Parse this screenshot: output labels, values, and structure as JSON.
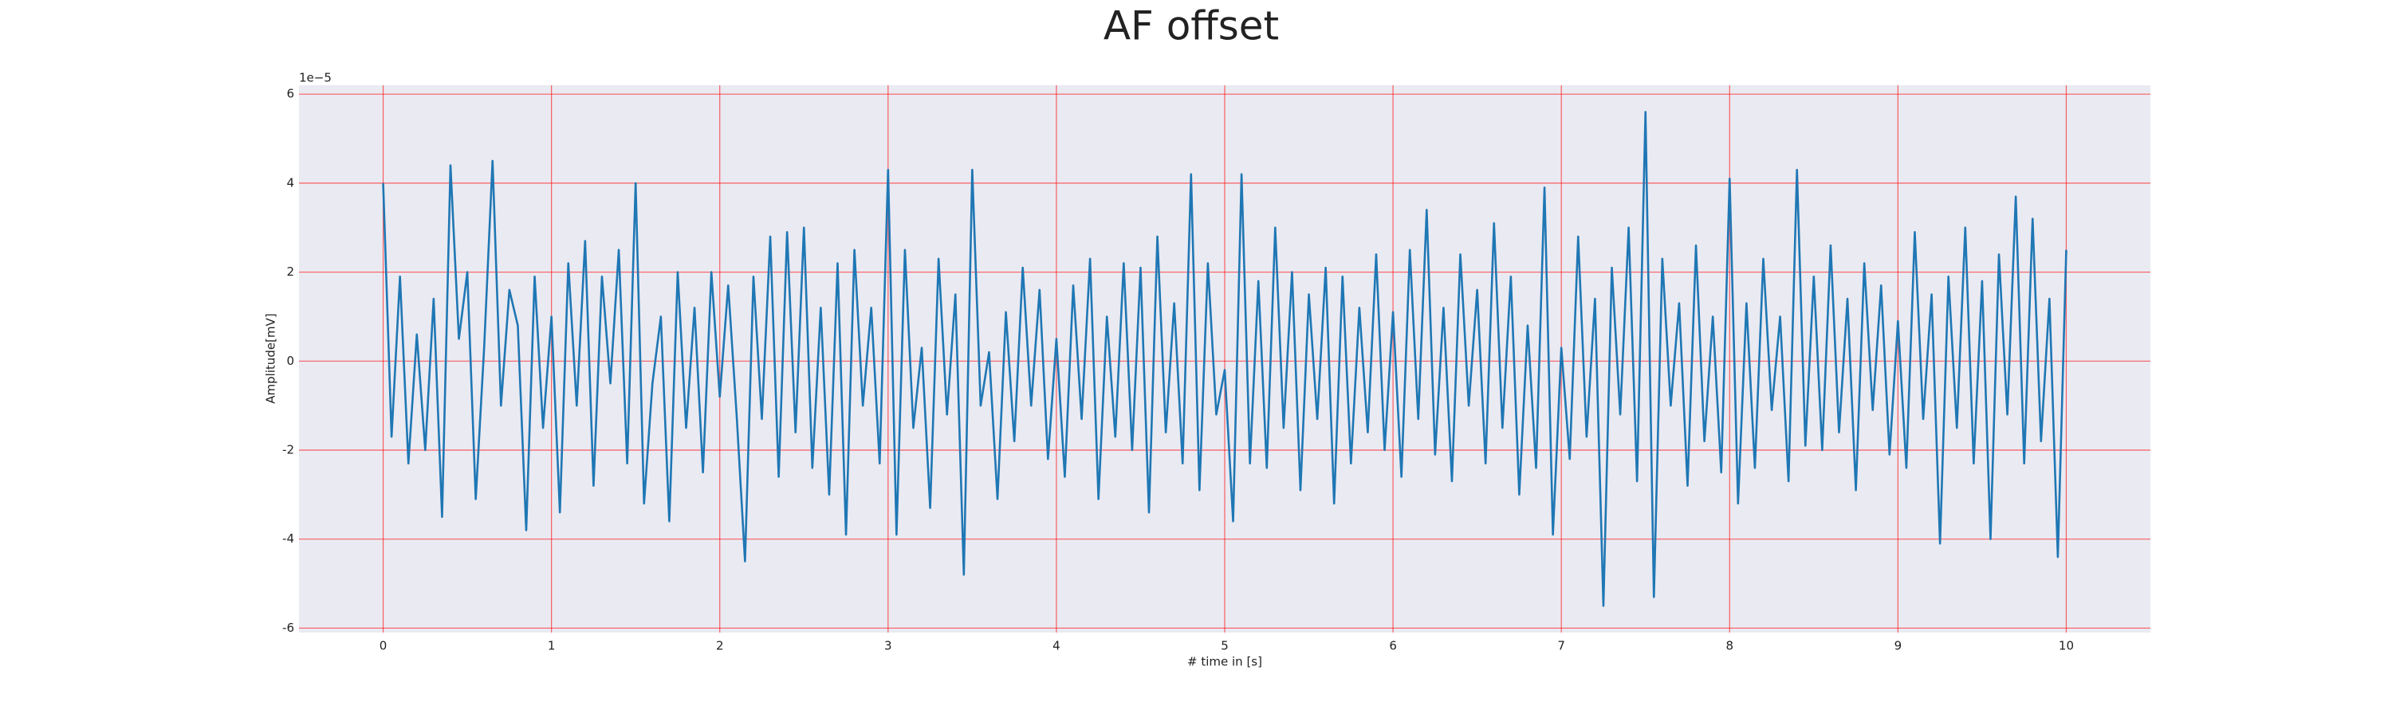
{
  "chart_data": {
    "type": "line",
    "title": "AF offset",
    "xlabel": "# time in [s]",
    "ylabel": "Amplitude[mV]",
    "offset_text": "1e−5",
    "color": "#1f77b4",
    "grid": true,
    "grid_color": "#ff0000",
    "background": "#eaeaf2",
    "xlim": [
      -0.5,
      10.5
    ],
    "ylim": [
      -6.1,
      6.2
    ],
    "xticks": [
      0,
      1,
      2,
      3,
      4,
      5,
      6,
      7,
      8,
      9,
      10
    ],
    "yticks": [
      -6,
      -4,
      -2,
      0,
      2,
      4,
      6
    ],
    "x": [
      0,
      0.05,
      0.1,
      0.15,
      0.2,
      0.25,
      0.3,
      0.35,
      0.4,
      0.45,
      0.5,
      0.55,
      0.6,
      0.65,
      0.7,
      0.75,
      0.8,
      0.85,
      0.9,
      0.95,
      1,
      1.05,
      1.1,
      1.15,
      1.2,
      1.25,
      1.3,
      1.35,
      1.4,
      1.45,
      1.5,
      1.55,
      1.6,
      1.65,
      1.7,
      1.75,
      1.8,
      1.85,
      1.9,
      1.95,
      2,
      2.05,
      2.1,
      2.15,
      2.2,
      2.25,
      2.3,
      2.35,
      2.4,
      2.45,
      2.5,
      2.55,
      2.6,
      2.65,
      2.7,
      2.75,
      2.8,
      2.85,
      2.9,
      2.95,
      3,
      3.05,
      3.1,
      3.15,
      3.2,
      3.25,
      3.3,
      3.35,
      3.4,
      3.45,
      3.5,
      3.55,
      3.6,
      3.65,
      3.7,
      3.75,
      3.8,
      3.85,
      3.9,
      3.95,
      4,
      4.05,
      4.1,
      4.15,
      4.2,
      4.25,
      4.3,
      4.35,
      4.4,
      4.45,
      4.5,
      4.55,
      4.6,
      4.65,
      4.7,
      4.75,
      4.8,
      4.85,
      4.9,
      4.95,
      5,
      5.05,
      5.1,
      5.15,
      5.2,
      5.25,
      5.3,
      5.35,
      5.4,
      5.45,
      5.5,
      5.55,
      5.6,
      5.65,
      5.7,
      5.75,
      5.8,
      5.85,
      5.9,
      5.95,
      6,
      6.05,
      6.1,
      6.15,
      6.2,
      6.25,
      6.3,
      6.35,
      6.4,
      6.45,
      6.5,
      6.55,
      6.6,
      6.65,
      6.7,
      6.75,
      6.8,
      6.85,
      6.9,
      6.95,
      7,
      7.05,
      7.1,
      7.15,
      7.2,
      7.25,
      7.3,
      7.35,
      7.4,
      7.45,
      7.5,
      7.55,
      7.6,
      7.65,
      7.7,
      7.75,
      7.8,
      7.85,
      7.9,
      7.95,
      8,
      8.05,
      8.1,
      8.15,
      8.2,
      8.25,
      8.3,
      8.35,
      8.4,
      8.45,
      8.5,
      8.55,
      8.6,
      8.65,
      8.7,
      8.75,
      8.8,
      8.85,
      8.9,
      8.95,
      9,
      9.05,
      9.1,
      9.15,
      9.2,
      9.25,
      9.3,
      9.35,
      9.4,
      9.45,
      9.5,
      9.55,
      9.6,
      9.65,
      9.7,
      9.75,
      9.8,
      9.85,
      9.9,
      9.95,
      10
    ],
    "values": [
      4.0,
      -1.7,
      1.9,
      -2.3,
      0.6,
      -2.0,
      1.4,
      -3.5,
      4.4,
      0.5,
      2.0,
      -3.1,
      0.3,
      4.5,
      -1.0,
      1.6,
      0.8,
      -3.8,
      1.9,
      -1.5,
      1.0,
      -3.4,
      2.2,
      -1.0,
      2.7,
      -2.8,
      1.9,
      -0.5,
      2.5,
      -2.3,
      4.0,
      -3.2,
      -0.5,
      1.0,
      -3.6,
      2.0,
      -1.5,
      1.2,
      -2.5,
      2.0,
      -0.8,
      1.7,
      -1.2,
      -4.5,
      1.9,
      -1.3,
      2.8,
      -2.6,
      2.9,
      -1.6,
      3.0,
      -2.4,
      1.2,
      -3.0,
      2.2,
      -3.9,
      2.5,
      -1.0,
      1.2,
      -2.3,
      4.3,
      -3.9,
      2.5,
      -1.5,
      0.3,
      -3.3,
      2.3,
      -1.2,
      1.5,
      -4.8,
      4.3,
      -1.0,
      0.2,
      -3.1,
      1.1,
      -1.8,
      2.1,
      -1.0,
      1.6,
      -2.2,
      0.5,
      -2.6,
      1.7,
      -1.3,
      2.3,
      -3.1,
      1.0,
      -1.7,
      2.2,
      -2.0,
      2.1,
      -3.4,
      2.8,
      -1.6,
      1.3,
      -2.3,
      4.2,
      -2.9,
      2.2,
      -1.2,
      -0.2,
      -3.6,
      4.2,
      -2.3,
      1.8,
      -2.4,
      3.0,
      -1.5,
      2.0,
      -2.9,
      1.5,
      -1.3,
      2.1,
      -3.2,
      1.9,
      -2.3,
      1.2,
      -1.6,
      2.4,
      -2.0,
      1.1,
      -2.6,
      2.5,
      -1.3,
      3.4,
      -2.1,
      1.2,
      -2.7,
      2.4,
      -1.0,
      1.6,
      -2.3,
      3.1,
      -1.5,
      1.9,
      -3.0,
      0.8,
      -2.4,
      3.9,
      -3.9,
      0.3,
      -2.2,
      2.8,
      -1.7,
      1.4,
      -5.5,
      2.1,
      -1.2,
      3.0,
      -2.7,
      5.6,
      -5.3,
      2.3,
      -1.0,
      1.3,
      -2.8,
      2.6,
      -1.8,
      1.0,
      -2.5,
      4.1,
      -3.2,
      1.3,
      -2.4,
      2.3,
      -1.1,
      1.0,
      -2.7,
      4.3,
      -1.9,
      1.9,
      -2.0,
      2.6,
      -1.6,
      1.4,
      -2.9,
      2.2,
      -1.1,
      1.7,
      -2.1,
      0.9,
      -2.4,
      2.9,
      -1.3,
      1.5,
      -4.1,
      1.9,
      -1.5,
      3.0,
      -2.3,
      1.8,
      -4.0,
      2.4,
      -1.2,
      3.7,
      -2.3,
      3.2,
      -1.8,
      1.4,
      -4.4,
      2.5
    ]
  }
}
